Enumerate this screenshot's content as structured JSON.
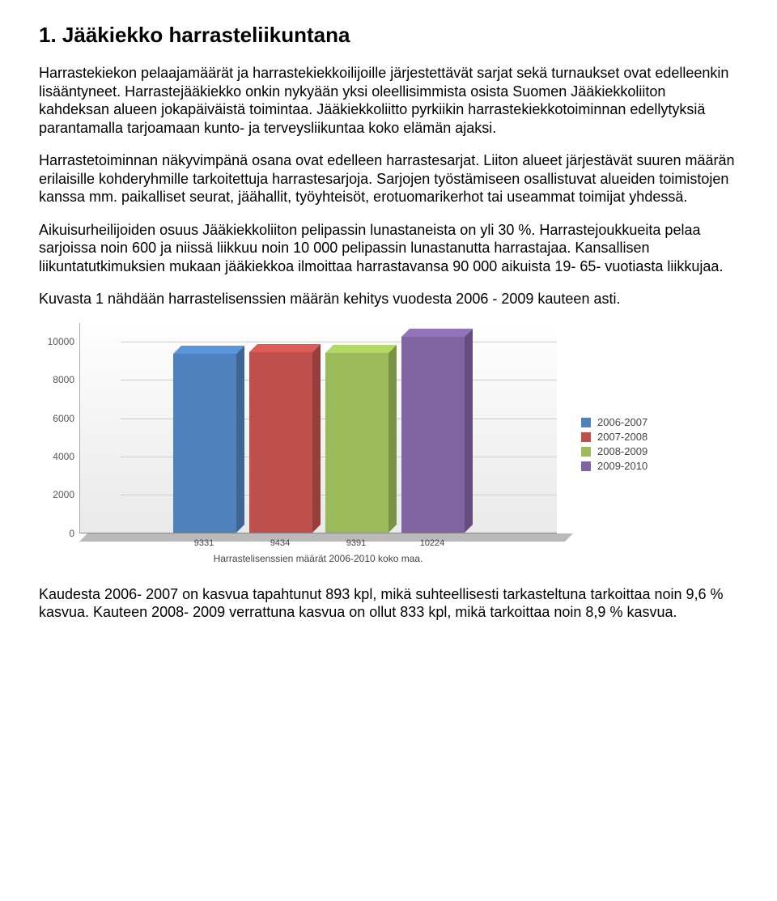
{
  "heading": "1. Jääkiekko harrasteliikuntana",
  "paragraphs": {
    "p1": "Harrastekiekon pelaajamäärät ja harrastekiekkoilijoille järjestettävät sarjat sekä turnaukset ovat edelleenkin lisääntyneet. Harrastejääkiekko onkin nykyään yksi oleellisimmista osista Suomen Jääkiekkoliiton kahdeksan alueen jokapäiväistä toimintaa. Jääkiekkoliitto pyrkiikin harrastekiekkotoiminnan edellytyksiä parantamalla tarjoamaan kunto- ja terveysliikuntaa koko elämän ajaksi.",
    "p2": "Harrastetoiminnan näkyvimpänä osana ovat edelleen harrastesarjat. Liiton alueet järjestävät suuren määrän erilaisille kohderyhmille tarkoitettuja harrastesarjoja. Sarjojen työstämiseen osallistuvat alueiden toimistojen kanssa mm. paikalliset seurat, jäähallit, työyhteisöt, erotuomarikerhot tai useammat toimijat yhdessä.",
    "p3": "Aikuisurheilijoiden osuus Jääkiekkoliiton pelipassin lunastaneista on yli 30 %. Harrastejoukkueita pelaa sarjoissa noin 600 ja niissä liikkuu noin 10 000 pelipassin lunastanutta harrastajaa. Kansallisen liikuntatutkimuksien mukaan jääkiekkoa ilmoittaa harrastavansa 90 000 aikuista 19- 65- vuotiasta liikkujaa.",
    "p4": "Kuvasta 1 nähdään harrastelisenssien määrän kehitys vuodesta 2006 - 2009 kauteen asti.",
    "p5": "Kaudesta 2006- 2007 on kasvua tapahtunut 893 kpl, mikä suhteellisesti tarkasteltuna tarkoittaa noin 9,6 % kasvua. Kauteen 2008- 2009 verrattuna kasvua on ollut 833 kpl, mikä tarkoittaa noin 8,9 % kasvua."
  },
  "chart": {
    "type": "bar",
    "ymax": 11000,
    "yticks": [
      0,
      2000,
      4000,
      6000,
      8000,
      10000
    ],
    "series": [
      {
        "label": "2006-2007",
        "value": 9331,
        "color": "#4f81bd"
      },
      {
        "label": "2007-2008",
        "value": 9434,
        "color": "#c0504d"
      },
      {
        "label": "2008-2009",
        "value": 9391,
        "color": "#9bbb59"
      },
      {
        "label": "2009-2010",
        "value": 10224,
        "color": "#8064a2"
      }
    ],
    "x_title": "Harrastelisenssien määrät 2006-2010 koko maa.",
    "plot_bg_top": "#fefefe",
    "plot_bg_bottom": "#e9e9ea",
    "grid_color": "#cccccc",
    "floor_color": "#bababa",
    "axis_label_color": "#555555",
    "legend_font_size": 13
  }
}
